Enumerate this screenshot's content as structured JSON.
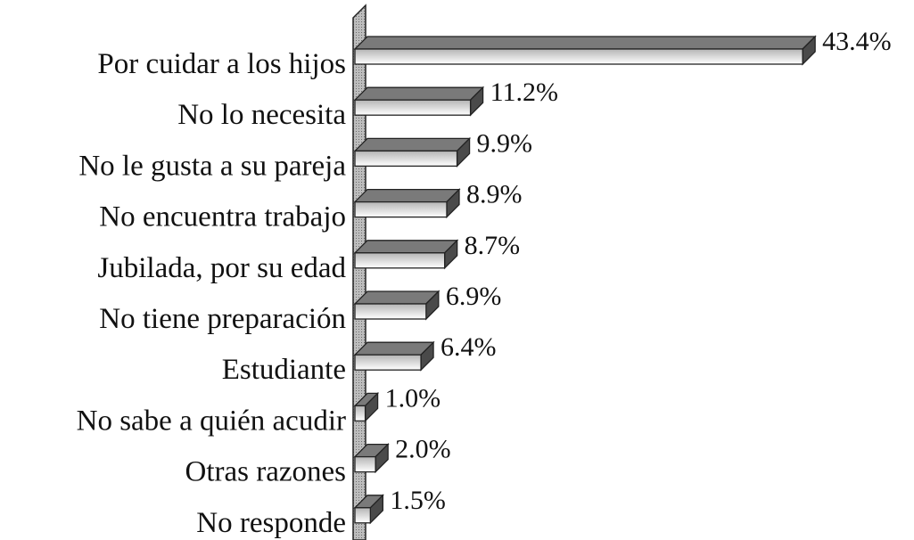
{
  "chart_data": {
    "type": "bar3d_horizontal",
    "categories": [
      "Por cuidar a los hijos",
      "No lo necesita",
      "No le gusta a su pareja",
      "No encuentra trabajo",
      "Jubilada, por su edad",
      "No tiene preparación",
      "Estudiante",
      "No sabe a quién acudir",
      "Otras razones",
      "No responde"
    ],
    "values": [
      43.4,
      11.2,
      9.9,
      8.9,
      8.7,
      6.9,
      6.4,
      1.0,
      2.0,
      1.5
    ],
    "value_labels": [
      "43.4%",
      "11.2%",
      "9.9%",
      "8.9%",
      "8.7%",
      "6.9%",
      "6.4%",
      "1.0%",
      "2.0%",
      "1.5%"
    ],
    "color": "#b4b4b4"
  }
}
